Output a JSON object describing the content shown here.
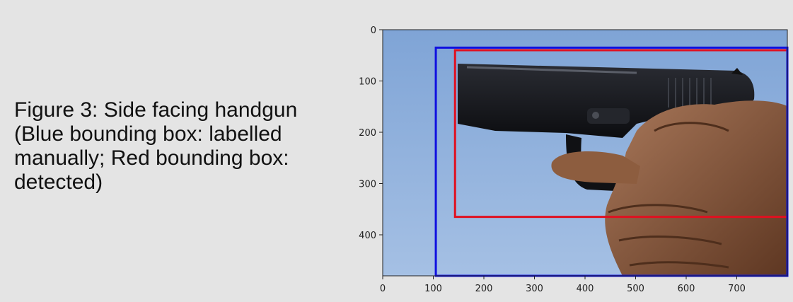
{
  "caption": "Figure 3: Side facing handgun (Blue bounding box: labelled manually; Red bounding box: detected)",
  "figure": {
    "x_ticks": [
      0,
      100,
      200,
      300,
      400,
      500,
      600,
      700
    ],
    "y_ticks": [
      0,
      100,
      200,
      300,
      400
    ],
    "x_range": [
      0,
      800
    ],
    "y_range": [
      0,
      480
    ],
    "colors": {
      "sky": "#8fb0dc",
      "manual_box": "#1010e0",
      "detected_box": "#e01020",
      "gun": "#17181c",
      "hand": "#8a5a3c"
    },
    "boxes": {
      "manual": {
        "x0": 105,
        "y0": 35,
        "x1": 800,
        "y1": 480
      },
      "detected": {
        "x0": 143,
        "y0": 40,
        "x1": 800,
        "y1": 365
      }
    }
  }
}
